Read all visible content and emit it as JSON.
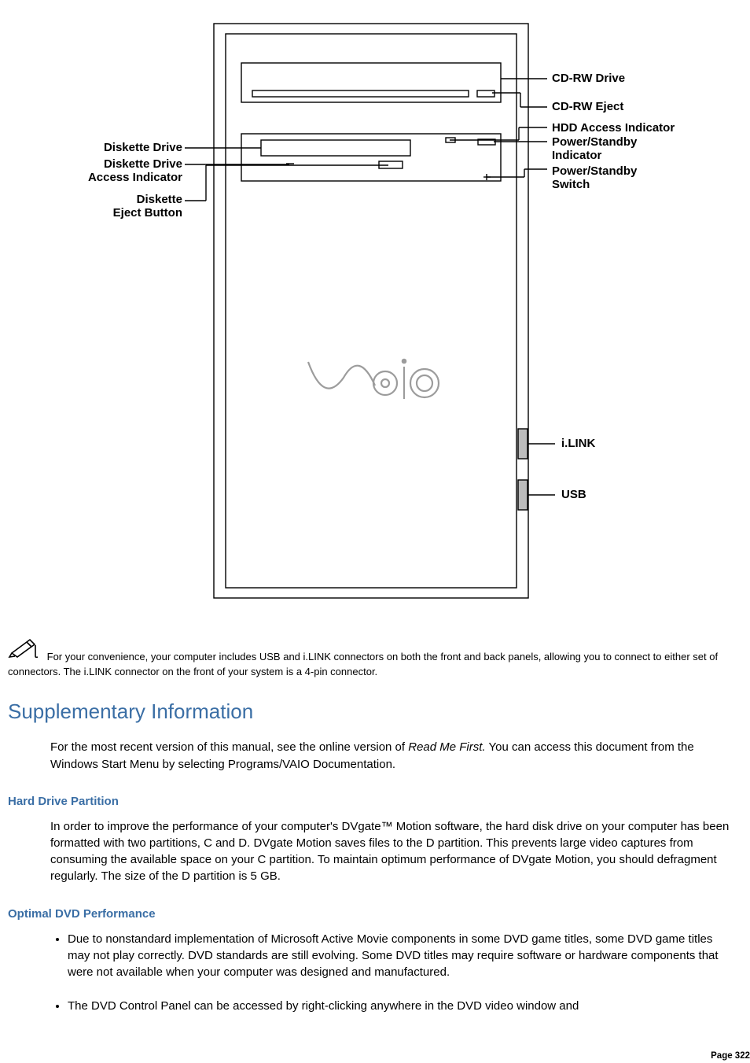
{
  "diagram": {
    "left_labels": [
      {
        "text": "Diskette Drive",
        "plain": true
      },
      {
        "text": "Diskette Drive\nAccess Indicator",
        "plain": false
      },
      {
        "text": "Diskette\nEject Button",
        "plain": false
      }
    ],
    "right_labels": [
      {
        "text": "CD-RW Drive"
      },
      {
        "text": "CD-RW Eject"
      },
      {
        "text": "HDD Access Indicator"
      },
      {
        "text": "Power/Standby\nIndicator"
      },
      {
        "text": "Power/Standby\nSwitch"
      },
      {
        "text": "i.LINK"
      },
      {
        "text": "USB"
      }
    ],
    "logo_text": "VAIO"
  },
  "note_text": "For your convenience, your computer includes USB and i.LINK connectors on both the front and back panels, allowing you to connect to either set of connectors. The i.LINK connector on the front of your system is a 4-pin connector.",
  "section_heading": "Supplementary Information",
  "supp_para_pre_em": "For the most recent version of this manual, see the online version of ",
  "supp_para_em": "Read Me First.",
  "supp_para_post_em": " You can access this document from the Windows Start Menu by selecting Programs/VAIO Documentation.",
  "hdpart_heading": "Hard Drive Partition",
  "hdpart_para": "In order to improve the performance of your computer's DVgate™ Motion software, the hard disk drive on your computer has been formatted with two partitions, C and D. DVgate Motion saves files to the D partition. This prevents large video captures from consuming the available space on your C partition. To maintain optimum performance of DVgate Motion, you should defragment regularly. The size of the D partition is 5 GB.",
  "dvd_heading": "Optimal DVD Performance",
  "dvd_items": [
    "Due to nonstandard implementation of Microsoft Active Movie components in some DVD game titles, some DVD game titles may not play correctly. DVD standards are still evolving. Some DVD titles may require software or hardware components that were not available when your computer was designed and manufactured.",
    "The DVD Control Panel can be accessed by right-clicking anywhere in the DVD video window and"
  ],
  "page_number": "Page 322"
}
